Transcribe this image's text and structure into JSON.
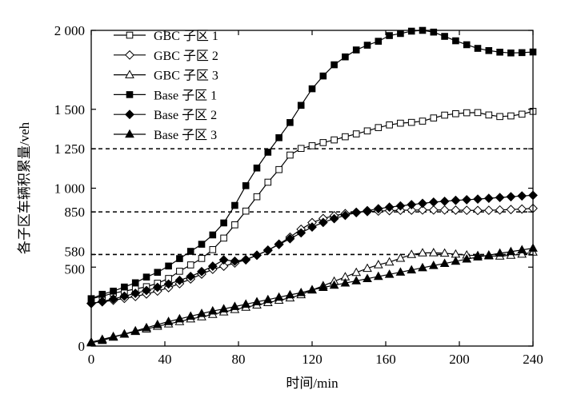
{
  "chart_data": {
    "type": "line",
    "xlabel": "时间/min",
    "ylabel": "各子区车辆积累量/veh",
    "xlim": [
      0,
      240
    ],
    "ylim": [
      0,
      2000
    ],
    "xticks": [
      0,
      40,
      80,
      120,
      160,
      200,
      240
    ],
    "xtick_labels": [
      "0",
      "40",
      "80",
      "120",
      "160",
      "200",
      "240"
    ],
    "yticks": [
      0,
      500,
      580,
      850,
      1000,
      1250,
      1500,
      2000
    ],
    "ytick_labels": [
      "0",
      "500",
      "580",
      "850",
      "1 000",
      "1 250",
      "1 500",
      "2 000"
    ],
    "reference_lines": [
      580,
      850,
      1250
    ],
    "legend_position": "top-left",
    "grid": false,
    "x": [
      0,
      6,
      12,
      18,
      24,
      30,
      36,
      42,
      48,
      54,
      60,
      66,
      72,
      78,
      84,
      90,
      96,
      102,
      108,
      114,
      120,
      126,
      132,
      138,
      144,
      150,
      156,
      162,
      168,
      174,
      180,
      186,
      192,
      198,
      204,
      210,
      216,
      222,
      228,
      234,
      240
    ],
    "series": [
      {
        "name": "GBC 子区 1",
        "marker": "square-open",
        "values": [
          300,
          316,
          335,
          348,
          361,
          376,
          398,
          428,
          474,
          514,
          555,
          611,
          684,
          768,
          855,
          946,
          1038,
          1118,
          1210,
          1252,
          1269,
          1289,
          1306,
          1326,
          1344,
          1363,
          1384,
          1401,
          1412,
          1417,
          1425,
          1445,
          1463,
          1472,
          1478,
          1479,
          1464,
          1454,
          1458,
          1469,
          1487
        ]
      },
      {
        "name": "GBC 子区 2",
        "marker": "diamond-open",
        "values": [
          270,
          280,
          290,
          302,
          314,
          330,
          348,
          370,
          395,
          425,
          456,
          486,
          506,
          526,
          546,
          576,
          606,
          646,
          690,
          740,
          782,
          808,
          826,
          839,
          848,
          852,
          855,
          858,
          860,
          861,
          862,
          862,
          862,
          861,
          860,
          859,
          860,
          862,
          865,
          868,
          872
        ]
      },
      {
        "name": "GBC 子区 3",
        "marker": "triangle-open",
        "values": [
          25,
          42,
          60,
          75,
          92,
          108,
          125,
          140,
          155,
          172,
          185,
          200,
          216,
          231,
          246,
          260,
          275,
          290,
          305,
          325,
          355,
          382,
          410,
          438,
          466,
          492,
          515,
          532,
          556,
          580,
          590,
          591,
          588,
          582,
          576,
          573,
          571,
          570,
          575,
          582,
          595
        ]
      },
      {
        "name": "Base 子区 1",
        "marker": "square-filled",
        "values": [
          300,
          328,
          348,
          374,
          401,
          437,
          467,
          507,
          554,
          600,
          645,
          704,
          780,
          891,
          1016,
          1128,
          1228,
          1320,
          1416,
          1525,
          1630,
          1711,
          1782,
          1832,
          1876,
          1906,
          1931,
          1967,
          1980,
          1995,
          2000,
          1989,
          1962,
          1934,
          1909,
          1886,
          1872,
          1862,
          1857,
          1859,
          1863
        ]
      },
      {
        "name": "Base 子区 2",
        "marker": "diamond-filled",
        "values": [
          270,
          283,
          298,
          316,
          334,
          352,
          372,
          393,
          416,
          441,
          472,
          506,
          546,
          538,
          548,
          575,
          608,
          643,
          680,
          717,
          754,
          783,
          807,
          828,
          845,
          858,
          870,
          880,
          888,
          896,
          904,
          912,
          917,
          923,
          927,
          931,
          936,
          941,
          946,
          951,
          955
        ]
      },
      {
        "name": "Base 子区 3",
        "marker": "triangle-filled",
        "values": [
          20,
          35,
          56,
          76,
          96,
          116,
          136,
          155,
          172,
          189,
          206,
          222,
          235,
          250,
          265,
          280,
          294,
          309,
          324,
          338,
          356,
          371,
          385,
          399,
          413,
          427,
          441,
          454,
          468,
          482,
          496,
          510,
          523,
          537,
          551,
          564,
          576,
          588,
          598,
          609,
          620
        ]
      }
    ]
  }
}
